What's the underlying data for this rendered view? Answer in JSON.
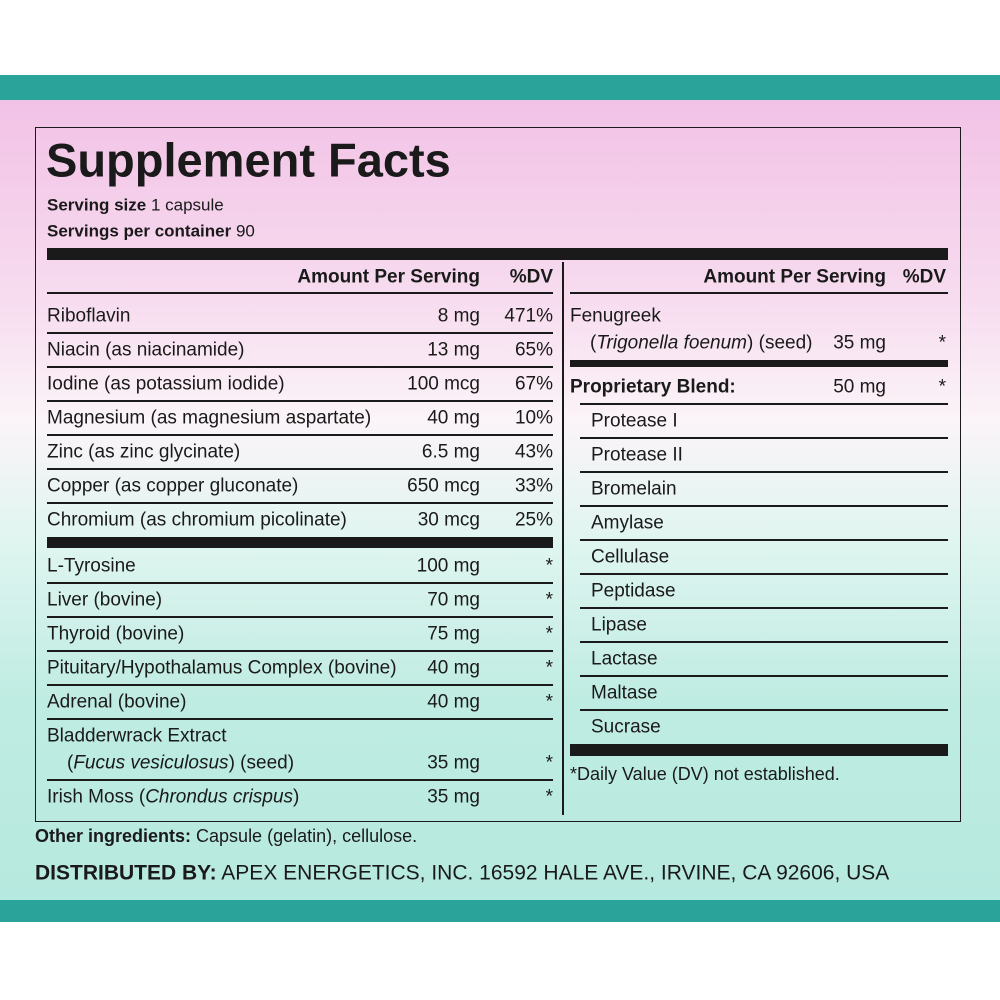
{
  "title": "Supplement Facts",
  "serving": [
    {
      "label": "Serving size",
      "value": "1 capsule"
    },
    {
      "label": "Servings per container",
      "value": "90"
    }
  ],
  "left": {
    "header": {
      "amount": "Amount Per Serving",
      "dv": "%DV"
    },
    "groups": [
      [
        {
          "name": [
            "Riboflavin"
          ],
          "amount": "8 mg",
          "dv": "471%"
        },
        {
          "name": [
            "Niacin (as niacinamide)"
          ],
          "amount": "13 mg",
          "dv": "65%"
        },
        {
          "name": [
            "Iodine (as potassium iodide)"
          ],
          "amount": "100 mcg",
          "dv": "67%"
        },
        {
          "name": [
            "Magnesium (as magnesium aspartate)"
          ],
          "amount": "40 mg",
          "dv": "10%"
        },
        {
          "name": [
            "Zinc (as zinc glycinate)"
          ],
          "amount": "6.5 mg",
          "dv": "43%"
        },
        {
          "name": [
            "Copper (as copper gluconate)"
          ],
          "amount": "650 mcg",
          "dv": "33%"
        },
        {
          "name": [
            "Chromium (as chromium picolinate)"
          ],
          "amount": "30 mcg",
          "dv": "25%"
        }
      ],
      [
        {
          "name": [
            "L-Tyrosine"
          ],
          "amount": "100 mg",
          "dv": "*"
        },
        {
          "name": [
            "Liver (bovine)"
          ],
          "amount": "70 mg",
          "dv": "*"
        },
        {
          "name": [
            "Thyroid (bovine)"
          ],
          "amount": "75 mg",
          "dv": "*"
        },
        {
          "name": [
            "Pituitary/Hypothalamus Complex (bovine)"
          ],
          "amount": "40 mg",
          "dv": "*"
        },
        {
          "name": [
            "Adrenal (bovine)"
          ],
          "amount": "40 mg",
          "dv": "*"
        },
        {
          "name": [
            "Bladderwrack Extract"
          ],
          "name2": [
            "(",
            "Fucus vesiculosus",
            ") (seed)"
          ],
          "amount": "35 mg",
          "dv": "*"
        },
        {
          "name": [
            "Irish Moss (",
            "Chrondus crispus",
            ")"
          ],
          "amount": "35 mg",
          "dv": "*"
        }
      ]
    ]
  },
  "right": {
    "header": {
      "amount": "Amount Per Serving",
      "dv": "%DV"
    },
    "fenugreek": {
      "name": [
        "Fenugreek"
      ],
      "name2": [
        "(",
        "Trigonella foenum",
        ") (seed)"
      ],
      "amount": "35 mg",
      "dv": "*"
    },
    "blend": {
      "name": [
        "Proprietary Blend:"
      ],
      "amount": "50 mg",
      "dv": "*"
    },
    "components": [
      "Protease I",
      "Protease II",
      "Bromelain",
      "Amylase",
      "Cellulase",
      "Peptidase",
      "Lipase",
      "Lactase",
      "Maltase",
      "Sucrase"
    ],
    "footnote": "*Daily Value (DV) not established."
  },
  "other": {
    "label": "Other ingredients:",
    "value": "Capsule (gelatin), cellulose."
  },
  "distributor": {
    "label": "DISTRIBUTED BY:",
    "value": "APEX ENERGETICS, INC. 16592 HALE AVE., IRVINE, CA 92606, USA"
  }
}
